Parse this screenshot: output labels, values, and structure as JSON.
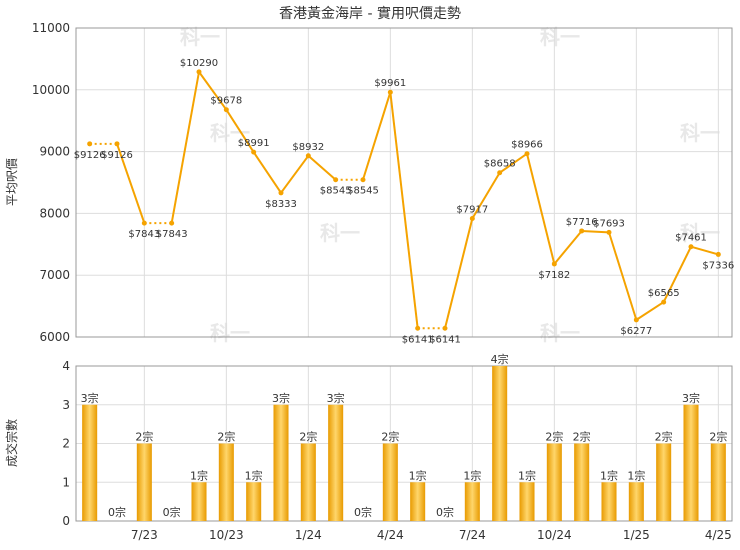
{
  "colors": {
    "line": "#f5a300",
    "bar": "#f0a400",
    "grid": "#dddddd",
    "axis": "#999999"
  },
  "chart_data": [
    {
      "type": "line",
      "title": "香港黃金海岸 - 實用呎價走勢",
      "ylabel": "平均呎價",
      "ylim": [
        6000,
        11000
      ],
      "yticks": [
        "6000",
        "7000",
        "8000",
        "9000",
        "10000",
        "11000"
      ],
      "grid": true,
      "series": [
        {
          "values": [
            9126,
            9126,
            7843,
            7843,
            10290,
            9678,
            8991,
            8333,
            8932,
            8545,
            8545,
            9961,
            6141,
            6141,
            7917,
            8658,
            8966,
            7182,
            7716,
            7693,
            6277,
            6565,
            7461,
            7336
          ],
          "labels": [
            "$9126",
            "$9126",
            "$7843",
            "$7843",
            "$10290",
            "$9678",
            "$8991",
            "$8333",
            "$8932",
            "$8545",
            "$8545",
            "$9961",
            "$6141",
            "$6141",
            "$7917",
            "$8658",
            "$8966",
            "$7182",
            "$7716",
            "$7693",
            "$6277",
            "$6565",
            "$7461",
            "$7336"
          ]
        }
      ]
    },
    {
      "type": "bar",
      "ylabel": "成交宗數",
      "ylim": [
        0,
        4
      ],
      "yticks": [
        "0",
        "1",
        "2",
        "3",
        "4"
      ],
      "grid": true,
      "xticks": [
        "7/23",
        "10/23",
        "1/24",
        "4/24",
        "7/24",
        "10/24",
        "1/25",
        "4/25"
      ],
      "values": [
        3,
        0,
        2,
        0,
        1,
        2,
        1,
        3,
        2,
        3,
        0,
        2,
        1,
        0,
        1,
        4,
        1,
        2,
        2,
        1,
        1,
        2,
        3,
        2
      ],
      "labels": [
        "3宗",
        "0宗",
        "2宗",
        "0宗",
        "1宗",
        "2宗",
        "1宗",
        "3宗",
        "2宗",
        "3宗",
        "0宗",
        "2宗",
        "1宗",
        "0宗",
        "1宗",
        "4宗",
        "1宗",
        "2宗",
        "2宗",
        "1宗",
        "1宗",
        "2宗",
        "3宗",
        "2宗"
      ]
    }
  ],
  "watermark": "科一"
}
